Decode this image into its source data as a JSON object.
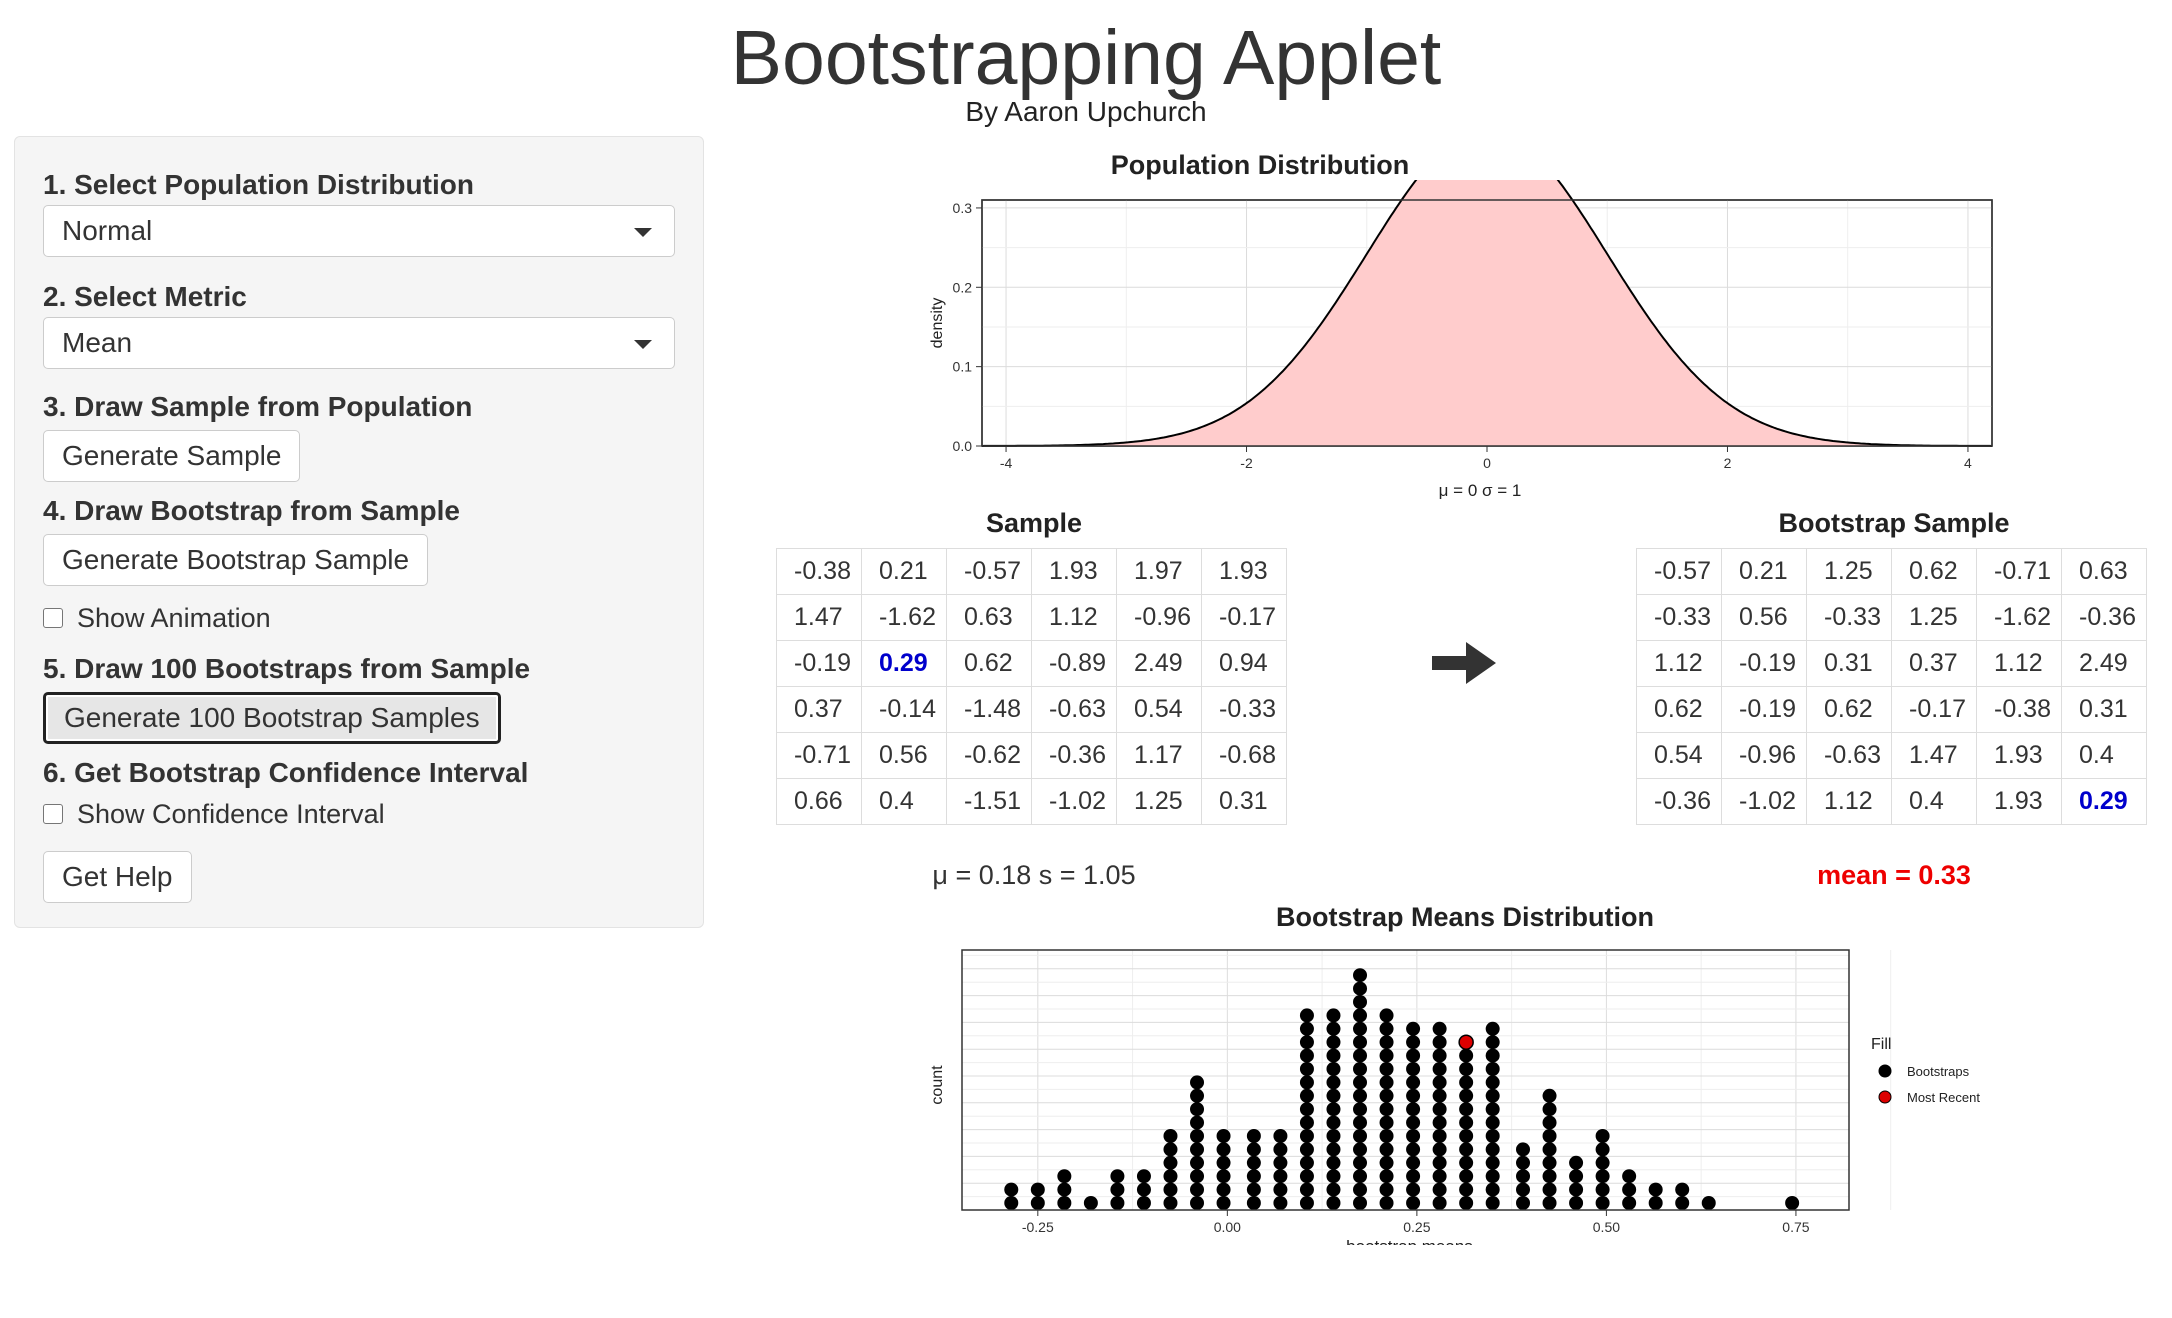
{
  "header": {
    "title": "Bootstrapping Applet",
    "author": "By Aaron Upchurch"
  },
  "sidebar": {
    "step1_label": "1. Select Population Distribution",
    "distribution_value": "Normal",
    "step2_label": "2. Select Metric",
    "metric_value": "Mean",
    "step3_label": "3. Draw Sample from Population",
    "generate_sample_label": "Generate Sample",
    "step4_label": "4. Draw Bootstrap from Sample",
    "generate_bootstrap_label": "Generate Bootstrap Sample",
    "show_animation_label": "Show Animation",
    "step5_label": "5. Draw 100 Bootstraps from Sample",
    "generate_100_label": "Generate 100 Bootstrap Samples",
    "step6_label": "6. Get Bootstrap Confidence Interval",
    "show_ci_label": "Show Confidence Interval",
    "help_label": "Get Help"
  },
  "population_plot": {
    "title": "Population Distribution",
    "ylabel": "density",
    "xlabel": "μ = 0 σ = 1",
    "x_ticks": [
      "-4",
      "-2",
      "0",
      "2",
      "4"
    ],
    "y_ticks": [
      "0.0",
      "0.1",
      "0.2",
      "0.3"
    ],
    "fill_color": "#ffcccc",
    "line_color": "#000000"
  },
  "sample": {
    "title": "Sample",
    "rows": [
      [
        "-0.38",
        "0.21",
        "-0.57",
        "1.93",
        "1.97",
        "1.93"
      ],
      [
        "1.47",
        "-1.62",
        "0.63",
        "1.12",
        "-0.96",
        "-0.17"
      ],
      [
        "-0.19",
        "0.29",
        "0.62",
        "-0.89",
        "2.49",
        "0.94"
      ],
      [
        "0.37",
        "-0.14",
        "-1.48",
        "-0.63",
        "0.54",
        "-0.33"
      ],
      [
        "-0.71",
        "0.56",
        "-0.62",
        "-0.36",
        "1.17",
        "-0.68"
      ],
      [
        "0.66",
        "0.4",
        "-1.51",
        "-1.02",
        "1.25",
        "0.31"
      ]
    ],
    "highlight": [
      2,
      1
    ],
    "stats": "μ = 0.18 s = 1.05"
  },
  "bootstrap": {
    "title": "Bootstrap Sample",
    "rows": [
      [
        "-0.57",
        "0.21",
        "1.25",
        "0.62",
        "-0.71",
        "0.63"
      ],
      [
        "-0.33",
        "0.56",
        "-0.33",
        "1.25",
        "-1.62",
        "-0.36"
      ],
      [
        "1.12",
        "-0.19",
        "0.31",
        "0.37",
        "1.12",
        "2.49"
      ],
      [
        "0.62",
        "-0.19",
        "0.62",
        "-0.17",
        "-0.38",
        "0.31"
      ],
      [
        "0.54",
        "-0.96",
        "-0.63",
        "1.47",
        "1.93",
        "0.4"
      ],
      [
        "-0.36",
        "-1.02",
        "1.12",
        "0.4",
        "1.93",
        "0.29"
      ]
    ],
    "highlight": [
      5,
      5
    ],
    "mean_text": "mean = 0.33",
    "highlight_color": "#0000cc",
    "mean_color": "#ee0000"
  },
  "chart_data": [
    {
      "type": "area",
      "title": "Population Distribution",
      "xlabel": "μ = 0 σ = 1",
      "ylabel": "density",
      "xlim": [
        -4.2,
        4.2
      ],
      "ylim": [
        0,
        0.31
      ],
      "distribution": "normal",
      "mean": 0,
      "sd": 1
    },
    {
      "type": "scatter",
      "subtype": "dotplot",
      "title": "Bootstrap Means Distribution",
      "xlabel": "bootstrap means",
      "ylabel": "count",
      "xlim": [
        -0.35,
        0.82
      ],
      "x_ticks": [
        "-0.25",
        "0.00",
        "0.25",
        "0.50",
        "0.75"
      ],
      "bins": [
        {
          "x": -0.285,
          "count": 2
        },
        {
          "x": -0.25,
          "count": 2
        },
        {
          "x": -0.215,
          "count": 3
        },
        {
          "x": -0.18,
          "count": 1
        },
        {
          "x": -0.145,
          "count": 3
        },
        {
          "x": -0.11,
          "count": 3
        },
        {
          "x": -0.075,
          "count": 6
        },
        {
          "x": -0.04,
          "count": 10
        },
        {
          "x": -0.005,
          "count": 6
        },
        {
          "x": 0.035,
          "count": 6
        },
        {
          "x": 0.07,
          "count": 6
        },
        {
          "x": 0.105,
          "count": 15
        },
        {
          "x": 0.14,
          "count": 15
        },
        {
          "x": 0.175,
          "count": 18
        },
        {
          "x": 0.21,
          "count": 15
        },
        {
          "x": 0.245,
          "count": 14
        },
        {
          "x": 0.28,
          "count": 14
        },
        {
          "x": 0.315,
          "count": 12,
          "most_recent": true
        },
        {
          "x": 0.35,
          "count": 14
        },
        {
          "x": 0.39,
          "count": 5
        },
        {
          "x": 0.425,
          "count": 9
        },
        {
          "x": 0.46,
          "count": 4
        },
        {
          "x": 0.495,
          "count": 6
        },
        {
          "x": 0.53,
          "count": 3
        },
        {
          "x": 0.565,
          "count": 2
        },
        {
          "x": 0.6,
          "count": 2
        },
        {
          "x": 0.635,
          "count": 1
        },
        {
          "x": 0.745,
          "count": 1
        }
      ],
      "legend": {
        "title": "Fill",
        "placement": "right",
        "entries": [
          {
            "name": "Bootstraps",
            "color": "#000000"
          },
          {
            "name": "Most Recent",
            "color": "#dd0000"
          }
        ]
      },
      "grid": true
    }
  ],
  "arrow_icon": "right-arrow-icon"
}
